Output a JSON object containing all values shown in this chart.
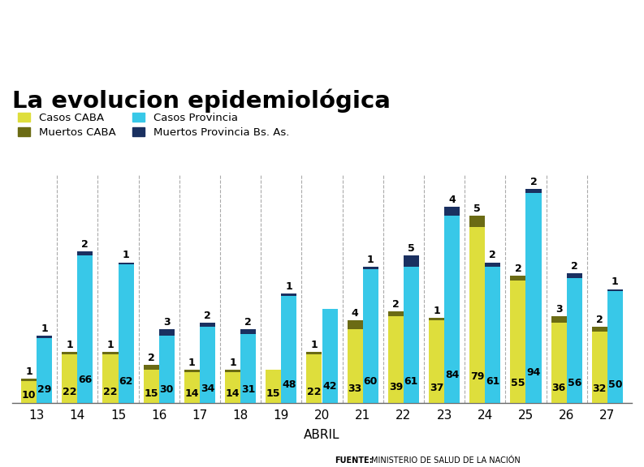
{
  "title": "La evolucion epidemiológica",
  "xlabel": "ABRIL",
  "days": [
    13,
    14,
    15,
    16,
    17,
    18,
    19,
    20,
    21,
    22,
    23,
    24,
    25,
    26,
    27
  ],
  "casos_caba": [
    10,
    22,
    22,
    15,
    14,
    14,
    15,
    22,
    33,
    39,
    37,
    79,
    55,
    36,
    32
  ],
  "muertos_caba": [
    1,
    1,
    1,
    2,
    1,
    1,
    0,
    1,
    4,
    2,
    1,
    5,
    2,
    3,
    2
  ],
  "casos_prov": [
    29,
    66,
    62,
    30,
    34,
    31,
    48,
    42,
    60,
    61,
    84,
    61,
    94,
    56,
    50
  ],
  "muertos_prov": [
    1,
    2,
    1,
    3,
    2,
    2,
    1,
    0,
    1,
    5,
    4,
    2,
    2,
    2,
    1
  ],
  "color_casos_caba": "#dede3c",
  "color_muertos_caba": "#6b6b14",
  "color_casos_prov": "#38c8e8",
  "color_muertos_prov": "#1a3060",
  "background": "#ffffff",
  "grid_color": "#aaaaaa",
  "bar_width": 0.38,
  "legend_labels": [
    "Casos CABA",
    "Muertos CABA",
    "Casos Provincia",
    "Muertos Provincia Bs. As."
  ],
  "title_fontsize": 21,
  "bar_fontsize": 9,
  "source_fontsize": 7.0,
  "ylim_max": 102
}
